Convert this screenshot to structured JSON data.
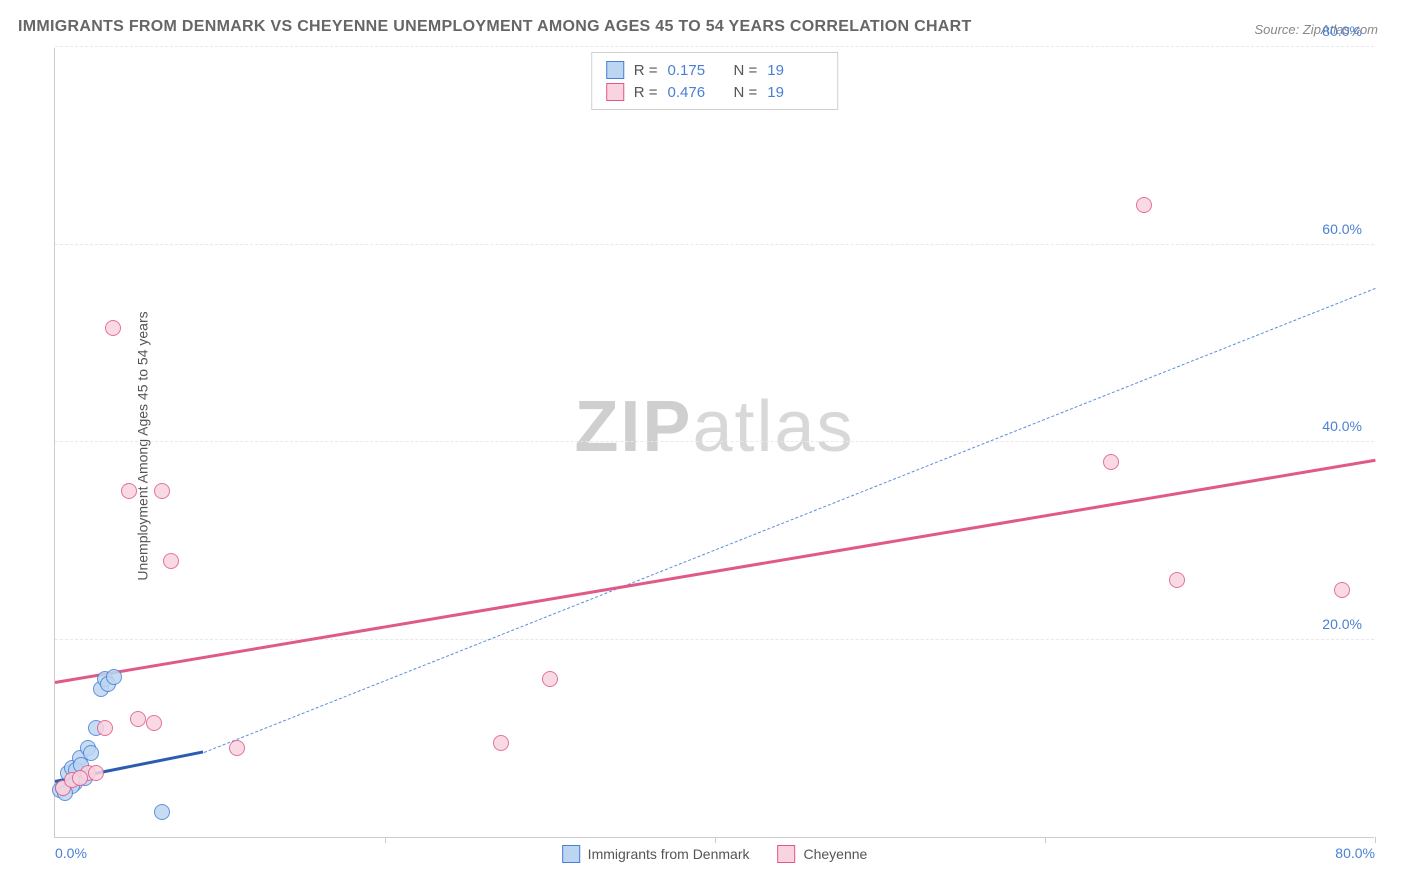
{
  "title": "IMMIGRANTS FROM DENMARK VS CHEYENNE UNEMPLOYMENT AMONG AGES 45 TO 54 YEARS CORRELATION CHART",
  "source": "Source: ZipAtlas.com",
  "y_axis_label": "Unemployment Among Ages 45 to 54 years",
  "watermark_a": "ZIP",
  "watermark_b": "atlas",
  "chart": {
    "type": "scatter",
    "xlim": [
      0,
      80
    ],
    "ylim": [
      0,
      80
    ],
    "x_ticks": [
      0,
      20,
      40,
      60,
      80
    ],
    "y_ticks": [
      20,
      40,
      60,
      80
    ],
    "x_tick_labels": [
      "0.0%",
      "",
      "",
      "",
      "80.0%"
    ],
    "y_tick_labels": [
      "20.0%",
      "40.0%",
      "60.0%",
      "80.0%"
    ],
    "background_color": "#ffffff",
    "grid_color": "#e8e8e8",
    "axis_color": "#cccccc",
    "tick_label_color": "#4a7fd6",
    "title_color": "#666666",
    "title_fontsize": 16,
    "label_fontsize": 14,
    "point_radius": 8,
    "series": [
      {
        "name": "Immigrants from Denmark",
        "fill": "#bcd6f2",
        "stroke": "#4a7fd6",
        "stroke_width": 1.5,
        "points": [
          [
            0.3,
            4.8
          ],
          [
            0.5,
            5.0
          ],
          [
            0.8,
            6.5
          ],
          [
            1.0,
            7.0
          ],
          [
            1.2,
            5.5
          ],
          [
            1.5,
            8.0
          ],
          [
            1.8,
            6.0
          ],
          [
            2.0,
            9.0
          ],
          [
            2.5,
            11.0
          ],
          [
            2.8,
            15.0
          ],
          [
            3.0,
            16.0
          ],
          [
            3.2,
            15.5
          ],
          [
            3.6,
            16.2
          ],
          [
            1.0,
            5.2
          ],
          [
            1.3,
            6.8
          ],
          [
            0.6,
            4.5
          ],
          [
            1.6,
            7.3
          ],
          [
            6.5,
            2.5
          ],
          [
            2.2,
            8.5
          ]
        ],
        "trend": {
          "x1": 0,
          "y1": 5.5,
          "x2": 9,
          "y2": 8.5,
          "color": "#2a5db0",
          "width": 3,
          "dash": false
        },
        "forecast": {
          "x1": 9,
          "y1": 8.5,
          "x2": 80,
          "y2": 55.5,
          "color": "#5a8fd8",
          "width": 1.5,
          "dash": true
        }
      },
      {
        "name": "Cheyenne",
        "fill": "#f9d3e0",
        "stroke": "#e05a87",
        "stroke_width": 1.5,
        "points": [
          [
            0.5,
            5.0
          ],
          [
            1.0,
            5.8
          ],
          [
            2.0,
            6.5
          ],
          [
            3.0,
            11.0
          ],
          [
            5.0,
            12.0
          ],
          [
            6.0,
            11.5
          ],
          [
            7.0,
            28.0
          ],
          [
            11.0,
            9.0
          ],
          [
            3.5,
            51.5
          ],
          [
            4.5,
            35.0
          ],
          [
            6.5,
            35.0
          ],
          [
            27.0,
            9.5
          ],
          [
            30.0,
            16.0
          ],
          [
            64.0,
            38.0
          ],
          [
            66.0,
            64.0
          ],
          [
            68.0,
            26.0
          ],
          [
            78.0,
            25.0
          ],
          [
            2.5,
            6.5
          ],
          [
            1.5,
            6.0
          ]
        ],
        "trend": {
          "x1": 0,
          "y1": 15.5,
          "x2": 80,
          "y2": 38.0,
          "color": "#e05a87",
          "width": 3,
          "dash": false
        }
      }
    ]
  },
  "stats_legend": {
    "rows": [
      {
        "swatch_fill": "#bcd6f2",
        "swatch_stroke": "#4a7fd6",
        "r_label": "R =",
        "r_value": "0.175",
        "n_label": "N =",
        "n_value": "19"
      },
      {
        "swatch_fill": "#f9d3e0",
        "swatch_stroke": "#e05a87",
        "r_label": "R =",
        "r_value": "0.476",
        "n_label": "N =",
        "n_value": "19"
      }
    ]
  },
  "bottom_legend": [
    {
      "swatch_fill": "#bcd6f2",
      "swatch_stroke": "#4a7fd6",
      "label": "Immigrants from Denmark"
    },
    {
      "swatch_fill": "#f9d3e0",
      "swatch_stroke": "#e05a87",
      "label": "Cheyenne"
    }
  ]
}
